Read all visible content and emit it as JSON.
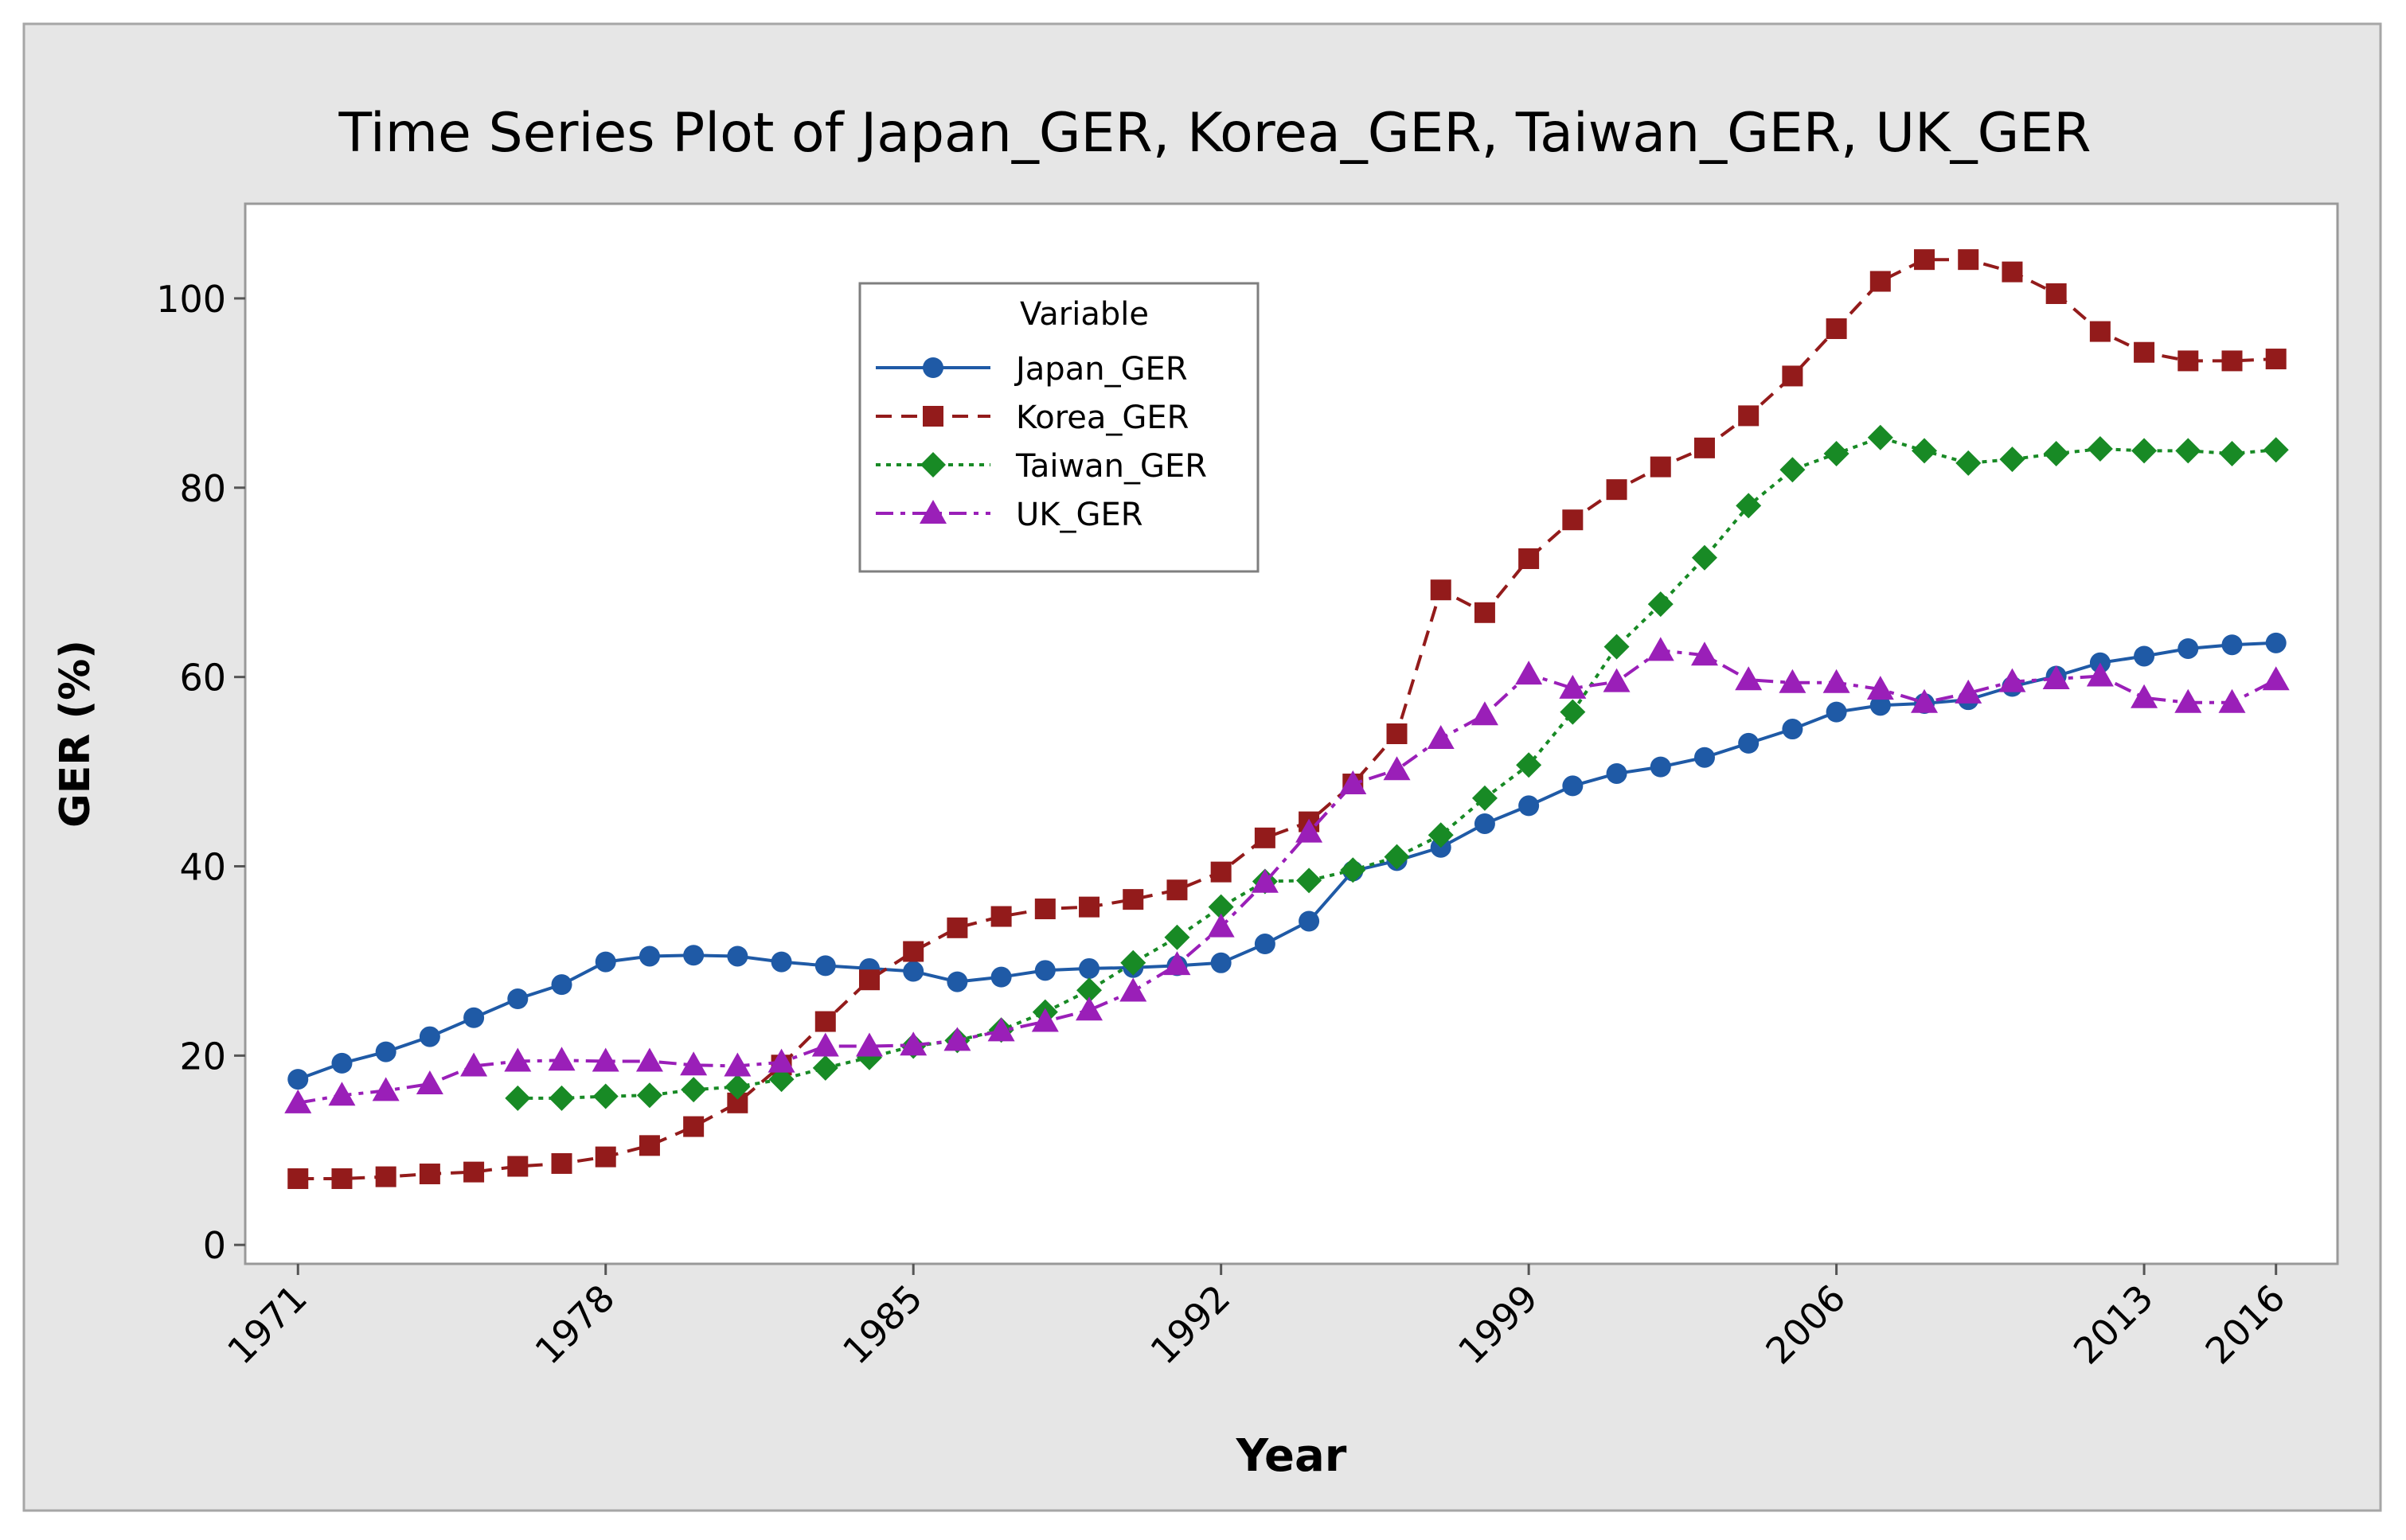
{
  "chart_data": {
    "type": "line",
    "title": "Time Series Plot of Japan_GER, Korea_GER, Taiwan_GER, UK_GER",
    "xlabel": "Year",
    "ylabel": "GER (%)",
    "xlim": [
      1969.8,
      2017.4
    ],
    "ylim": [
      -2,
      110
    ],
    "x_ticks": [
      1971,
      1978,
      1985,
      1992,
      1999,
      2006,
      2013,
      2016
    ],
    "x_tick_labels": [
      "1971",
      "1978",
      "1985",
      "1992",
      "1999",
      "2006",
      "2013",
      "2016"
    ],
    "y_ticks": [
      0,
      20,
      40,
      60,
      80,
      100
    ],
    "y_tick_labels": [
      "0",
      "20",
      "40",
      "60",
      "80",
      "100"
    ],
    "grid": false,
    "legend": {
      "title": "Variable",
      "placement": "upper-left-center",
      "entries": [
        "Japan_GER",
        "Korea_GER",
        "Taiwan_GER",
        "UK_GER"
      ]
    },
    "series": [
      {
        "name": "Japan_GER",
        "color": "#1f5aa6",
        "dash": "solid",
        "marker": "circle",
        "x": [
          1971,
          1972,
          1973,
          1974,
          1975,
          1976,
          1977,
          1978,
          1979,
          1980,
          1981,
          1982,
          1983,
          1984,
          1985,
          1986,
          1987,
          1988,
          1989,
          1990,
          1991,
          1992,
          1993,
          1994,
          1995,
          1996,
          1997,
          1998,
          1999,
          2000,
          2001,
          2002,
          2003,
          2004,
          2005,
          2006,
          2007,
          2008,
          2009,
          2010,
          2011,
          2012,
          2013,
          2014,
          2015,
          2016
        ],
        "values": [
          17.5,
          19.2,
          20.4,
          22.0,
          24.0,
          26.0,
          27.5,
          29.9,
          30.5,
          30.6,
          30.5,
          29.9,
          29.5,
          29.2,
          28.9,
          27.8,
          28.3,
          29.0,
          29.2,
          29.3,
          29.5,
          29.8,
          31.8,
          34.2,
          39.5,
          40.6,
          42.0,
          44.5,
          46.4,
          48.5,
          49.8,
          50.5,
          51.5,
          53.0,
          54.5,
          56.3,
          57.0,
          57.2,
          57.6,
          59.0,
          60.1,
          61.5,
          62.2,
          63.0,
          63.4,
          63.6
        ]
      },
      {
        "name": "Korea_GER",
        "color": "#931b1b",
        "dash": "dashed",
        "marker": "square",
        "x": [
          1971,
          1972,
          1973,
          1974,
          1975,
          1976,
          1977,
          1978,
          1979,
          1980,
          1981,
          1982,
          1983,
          1984,
          1985,
          1986,
          1987,
          1988,
          1989,
          1990,
          1991,
          1992,
          1993,
          1994,
          1995,
          1996,
          1997,
          1998,
          1999,
          2000,
          2001,
          2002,
          2003,
          2004,
          2005,
          2006,
          2007,
          2008,
          2009,
          2010,
          2011,
          2012,
          2013,
          2014,
          2015,
          2016
        ],
        "values": [
          7.0,
          7.0,
          7.2,
          7.5,
          7.7,
          8.3,
          8.6,
          9.3,
          10.5,
          12.5,
          15.0,
          19.0,
          23.6,
          28.0,
          31.0,
          33.5,
          34.7,
          35.5,
          35.7,
          36.5,
          37.5,
          39.4,
          43.0,
          44.7,
          48.7,
          54.0,
          69.2,
          66.8,
          72.5,
          76.6,
          79.8,
          82.2,
          84.2,
          87.6,
          91.8,
          96.8,
          101.8,
          104.1,
          104.1,
          102.8,
          100.5,
          96.5,
          94.3,
          93.4,
          93.4,
          93.6
        ]
      },
      {
        "name": "Taiwan_GER",
        "color": "#188a25",
        "dash": "dotted",
        "marker": "diamond",
        "x": [
          1976,
          1977,
          1978,
          1979,
          1980,
          1981,
          1982,
          1983,
          1984,
          1985,
          1986,
          1987,
          1988,
          1989,
          1990,
          1991,
          1992,
          1993,
          1994,
          1995,
          1996,
          1997,
          1998,
          1999,
          2000,
          2001,
          2002,
          2003,
          2004,
          2005,
          2006,
          2007,
          2008,
          2009,
          2010,
          2011,
          2012,
          2013,
          2014,
          2015,
          2016
        ],
        "values": [
          15.5,
          15.5,
          15.7,
          15.8,
          16.4,
          16.7,
          17.5,
          18.7,
          19.8,
          21.0,
          21.6,
          22.7,
          24.6,
          26.9,
          29.8,
          32.5,
          35.7,
          38.4,
          38.5,
          39.6,
          41.0,
          43.3,
          47.2,
          50.7,
          56.3,
          63.2,
          67.7,
          72.6,
          78.1,
          81.9,
          83.6,
          85.3,
          83.9,
          82.6,
          83.0,
          83.6,
          84.1,
          83.9,
          83.9,
          83.6,
          84.0
        ]
      },
      {
        "name": "UK_GER",
        "color": "#9a1fb8",
        "dash": "dashdot",
        "marker": "triangle",
        "x": [
          1971,
          1972,
          1973,
          1974,
          1975,
          1976,
          1977,
          1978,
          1979,
          1980,
          1981,
          1982,
          1983,
          1984,
          1985,
          1986,
          1987,
          1988,
          1989,
          1990,
          1991,
          1992,
          1993,
          1994,
          1995,
          1996,
          1997,
          1998,
          1999,
          2000,
          2001,
          2002,
          2003,
          2004,
          2005,
          2006,
          2007,
          2008,
          2009,
          2010,
          2011,
          2012,
          2013,
          2014,
          2015,
          2016
        ],
        "values": [
          15.0,
          15.8,
          16.3,
          17.0,
          18.9,
          19.4,
          19.5,
          19.4,
          19.4,
          19.0,
          18.9,
          19.3,
          21.0,
          21.0,
          21.1,
          21.6,
          22.6,
          23.6,
          24.8,
          26.8,
          29.6,
          33.6,
          38.3,
          43.6,
          48.7,
          50.2,
          53.5,
          56.0,
          60.3,
          58.8,
          59.5,
          62.8,
          62.3,
          59.7,
          59.4,
          59.4,
          58.7,
          57.3,
          58.3,
          59.5,
          59.8,
          60.1,
          57.8,
          57.3,
          57.3,
          59.7
        ]
      }
    ]
  }
}
